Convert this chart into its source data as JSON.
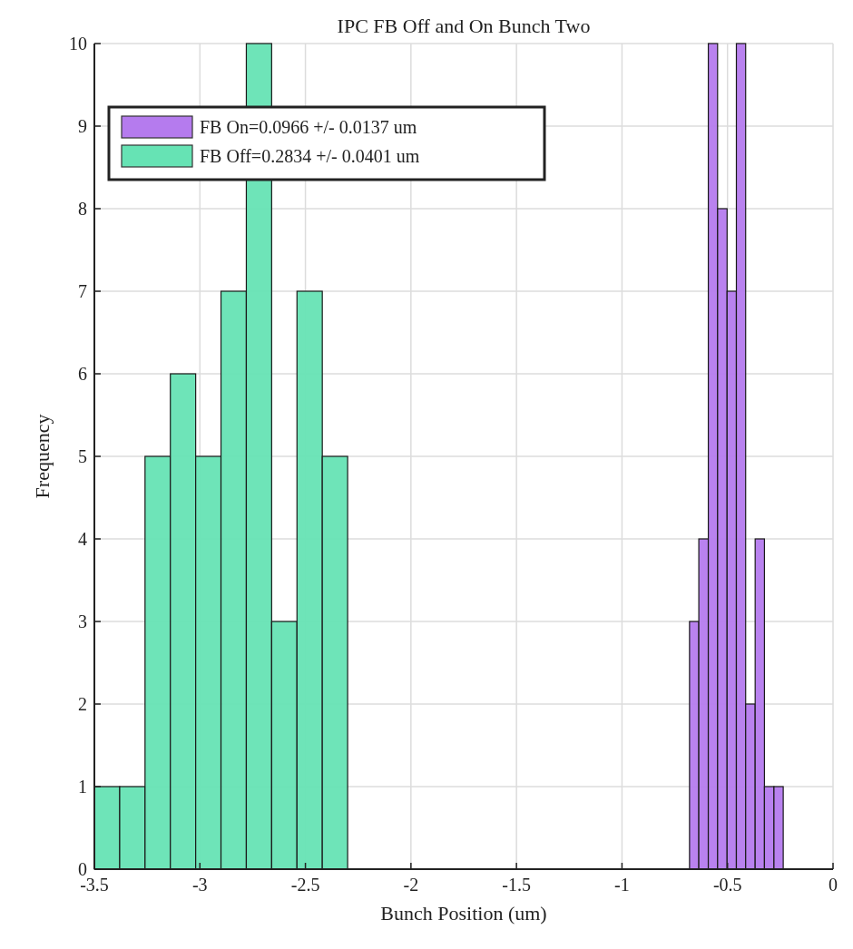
{
  "chart_data": {
    "type": "histogram",
    "title": "IPC FB Off and On Bunch Two",
    "xlabel": "Bunch Position (um)",
    "ylabel": "Frequency",
    "bins": [
      -3.5,
      -3.38,
      -3.26,
      -3.14,
      -3.02,
      -2.9,
      -2.78,
      -2.66,
      -2.54,
      -2.42,
      -2.3,
      -0.68,
      -0.636,
      -0.591,
      -0.547,
      -0.502,
      -0.458,
      -0.414,
      -0.369,
      -0.325,
      -0.28,
      -0.236
    ],
    "series": [
      {
        "name": "FB On=0.0966 +/- 0.0137 um",
        "color": "#b57bee",
        "values": [
          null,
          null,
          null,
          null,
          null,
          null,
          null,
          null,
          null,
          null,
          null,
          3,
          4,
          10,
          8,
          7,
          10,
          2,
          4,
          1,
          1
        ]
      },
      {
        "name": "FB Off=0.2834 +/- 0.0401 um",
        "color": "#66e3b4",
        "values": [
          1,
          1,
          5,
          6,
          5,
          7,
          10,
          3,
          7,
          5,
          null,
          null,
          null,
          null,
          null,
          null,
          null,
          null,
          null,
          null,
          null
        ]
      }
    ],
    "xlim": [
      -3.5,
      0
    ],
    "xticks": [
      -3.5,
      -3,
      -2.5,
      -2,
      -1.5,
      -1,
      -0.5,
      0
    ],
    "ylim": [
      0,
      10
    ],
    "yticks": [
      0,
      1,
      2,
      3,
      4,
      5,
      6,
      7,
      8,
      9,
      10
    ],
    "grid": true,
    "legend": "top left"
  }
}
